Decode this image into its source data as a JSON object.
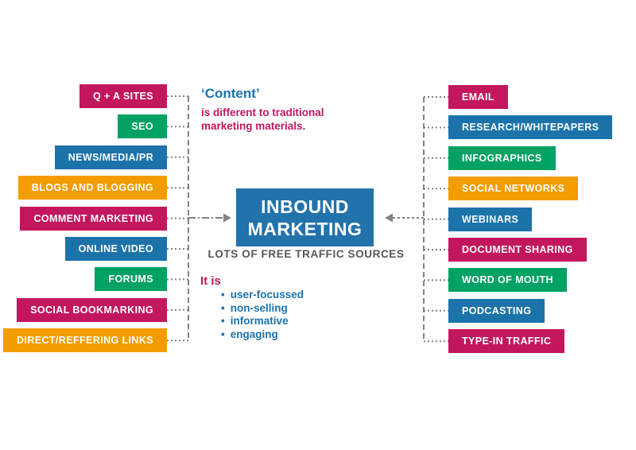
{
  "title_note": {
    "headline": "‘Content’",
    "line1": "is different to traditional",
    "line2": "marketing materials."
  },
  "center": {
    "title_line1": "INBOUND",
    "title_line2": "MARKETING",
    "caption": "LOTS OF FREE TRAFFIC SOURCES"
  },
  "qualities": {
    "heading": "It is",
    "items": [
      "user-focussed",
      "non-selling",
      "informative",
      "engaging"
    ]
  },
  "sources": {
    "left": [
      {
        "label": "Q + A SITES",
        "color": "pink"
      },
      {
        "label": "SEO",
        "color": "green"
      },
      {
        "label": "NEWS/MEDIA/PR",
        "color": "blue"
      },
      {
        "label": "BLOGS AND BLOGGING",
        "color": "orange"
      },
      {
        "label": "COMMENT MARKETING",
        "color": "pink"
      },
      {
        "label": "ONLINE VIDEO",
        "color": "blue"
      },
      {
        "label": "FORUMS",
        "color": "green"
      },
      {
        "label": "SOCIAL BOOKMARKING",
        "color": "pink"
      },
      {
        "label": "DIRECT/REFFERING LINKS",
        "color": "orange"
      }
    ],
    "right": [
      {
        "label": "EMAIL",
        "color": "pink"
      },
      {
        "label": "RESEARCH/WHITEPAPERS",
        "color": "blue"
      },
      {
        "label": "INFOGRAPHICS",
        "color": "green"
      },
      {
        "label": "SOCIAL NETWORKS",
        "color": "orange"
      },
      {
        "label": "WEBINARS",
        "color": "blue"
      },
      {
        "label": "DOCUMENT SHARING",
        "color": "pink"
      },
      {
        "label": "WORD OF MOUTH",
        "color": "green"
      },
      {
        "label": "PODCASTING",
        "color": "blue"
      },
      {
        "label": "TYPE-IN TRAFFIC",
        "color": "pink"
      }
    ]
  },
  "colors": {
    "pink": "#c2175d",
    "green": "#00a263",
    "blue": "#1c73aa",
    "orange": "#f39c00",
    "center_blue": "#2273ac",
    "note_blue": "#1c73aa",
    "note_pink": "#c2175d",
    "caption_gray": "#55565a",
    "line_gray": "#828282"
  }
}
